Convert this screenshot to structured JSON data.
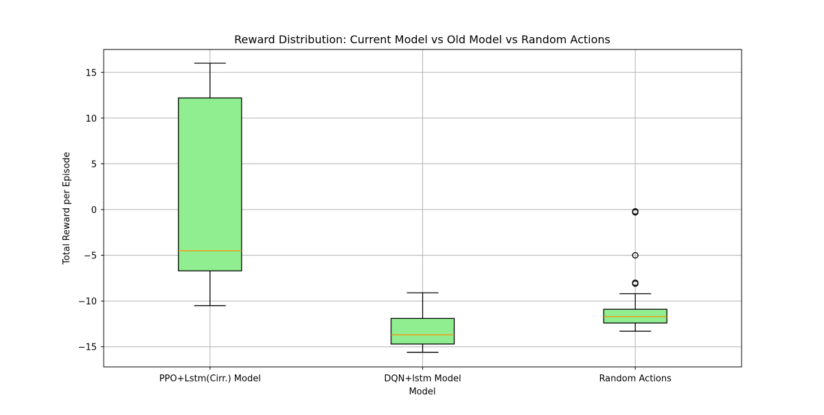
{
  "chart_data": {
    "type": "boxplot",
    "title": "Reward Distribution: Current Model vs Old Model vs Random Actions",
    "xlabel": "Model",
    "ylabel": "Total Reward per Episode",
    "ylim": [
      -17.2,
      17.5
    ],
    "yticks": [
      15,
      10,
      5,
      0,
      -5,
      -10,
      -15
    ],
    "ytick_labels": [
      "15",
      "10",
      "5",
      "0",
      "−5",
      "−10",
      "−15"
    ],
    "grid": true,
    "colors": {
      "box_fill": "#90ee90",
      "box_edge": "#000000",
      "median": "#ff8c00",
      "grid": "#b0b0b0"
    },
    "categories": [
      "PPO+Lstm(Cirr.) Model",
      "DQN+lstm Model",
      "Random Actions"
    ],
    "boxes": [
      {
        "whisker_low": -10.5,
        "q1": -6.7,
        "median": -4.5,
        "q3": 12.2,
        "whisker_high": 16.0,
        "outliers": []
      },
      {
        "whisker_low": -15.6,
        "q1": -14.7,
        "median": -13.7,
        "q3": -11.9,
        "whisker_high": -9.1,
        "outliers": []
      },
      {
        "whisker_low": -13.3,
        "q1": -12.4,
        "median": -11.7,
        "q3": -10.9,
        "whisker_high": -9.2,
        "outliers": [
          -0.2,
          -0.3,
          -5.0,
          -8.0,
          -8.1
        ]
      }
    ]
  }
}
